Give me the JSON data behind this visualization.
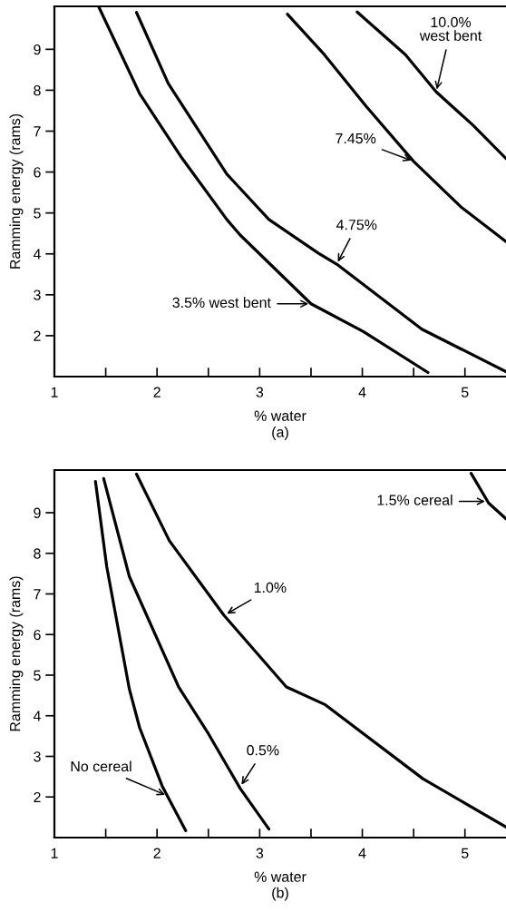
{
  "chart_data": [
    {
      "type": "line",
      "title": "(a)",
      "xlabel": "% water",
      "ylabel": "Ramming energy (rams)",
      "xlim": [
        1,
        5.4
      ],
      "ylim": [
        1,
        10.05
      ],
      "xticks": [
        1,
        {
          "value": 1.5,
          "label": null
        },
        2,
        {
          "value": 2.5,
          "label": null
        },
        3,
        {
          "value": 3.5,
          "label": null
        },
        4,
        {
          "value": 4.5,
          "label": null
        },
        5
      ],
      "yticks": [
        2,
        3,
        4,
        5,
        6,
        7,
        8,
        9
      ],
      "series": [
        {
          "color": "#000000",
          "x": [
            1.43,
            1.83,
            2.24,
            2.68,
            2.81,
            3.5,
            4.01,
            4.64
          ],
          "values": [
            10.05,
            7.92,
            6.35,
            4.84,
            4.46,
            2.78,
            2.1,
            1.1
          ]
        },
        {
          "color": "#000000",
          "x": [
            1.8,
            2.11,
            2.68,
            3.09,
            3.57,
            3.75,
            4.58,
            5.4
          ],
          "values": [
            9.9,
            8.16,
            5.95,
            4.84,
            4.02,
            3.75,
            2.16,
            1.12
          ]
        },
        {
          "color": "#000000",
          "x": [
            3.27,
            3.63,
            4.04,
            4.5,
            4.96,
            5.4
          ],
          "values": [
            9.86,
            8.87,
            7.6,
            6.26,
            5.15,
            4.3
          ]
        },
        {
          "color": "#000000",
          "x": [
            3.95,
            4.42,
            4.72,
            5.08,
            5.4
          ],
          "values": [
            9.91,
            8.87,
            7.96,
            7.14,
            6.33
          ]
        }
      ],
      "annotations": [
        {
          "text": "10.0%\nwest bent",
          "x": 4.72,
          "y": 7.96
        },
        {
          "text": "7.45%",
          "x": 4.5,
          "y": 6.26
        },
        {
          "text": "4.75%",
          "x": 3.75,
          "y": 3.75
        },
        {
          "text": "3.5% west bent",
          "x": 3.5,
          "y": 2.78
        }
      ]
    },
    {
      "type": "line",
      "title": "(b)",
      "xlabel": "% water",
      "ylabel": "Ramming energy (rams)",
      "xlim": [
        1,
        5.4
      ],
      "ylim": [
        1,
        10.05
      ],
      "xticks": [
        1,
        {
          "value": 1.5,
          "label": null
        },
        2,
        {
          "value": 2.5,
          "label": null
        },
        3,
        {
          "value": 3.5,
          "label": null
        },
        4,
        {
          "value": 4.5,
          "label": null
        },
        5
      ],
      "yticks": [
        2,
        3,
        4,
        5,
        6,
        7,
        8,
        9
      ],
      "series": [
        {
          "color": "#000000",
          "x": [
            1.4,
            1.51,
            1.73,
            1.83,
            2.05,
            2.28
          ],
          "values": [
            9.77,
            7.67,
            4.66,
            3.71,
            2.27,
            1.17
          ]
        },
        {
          "color": "#000000",
          "x": [
            1.48,
            1.73,
            2.21,
            2.5,
            2.81,
            3.09
          ],
          "values": [
            9.84,
            7.43,
            4.71,
            3.56,
            2.21,
            1.21
          ]
        },
        {
          "color": "#000000",
          "x": [
            1.8,
            2.12,
            2.65,
            3.26,
            3.64,
            4.59,
            5.4
          ],
          "values": [
            9.95,
            8.31,
            6.48,
            4.71,
            4.27,
            2.45,
            1.26
          ]
        },
        {
          "color": "#000000",
          "x": [
            5.06,
            5.23,
            5.4
          ],
          "values": [
            9.97,
            9.24,
            8.85
          ]
        }
      ],
      "annotations": [
        {
          "text": "1.5% cereal",
          "x": 5.22,
          "y": 9.28
        },
        {
          "text": "1.0%",
          "x": 2.66,
          "y": 6.48
        },
        {
          "text": "0.5%",
          "x": 2.81,
          "y": 2.25
        },
        {
          "text": "No cereal",
          "x": 2.1,
          "y": 2.03
        }
      ]
    }
  ]
}
